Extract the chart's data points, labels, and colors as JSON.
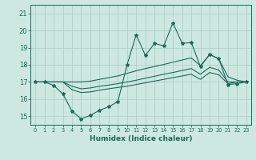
{
  "xlabel": "Humidex (Indice chaleur)",
  "background_color": "#cce8e0",
  "grid_color": "#aaccc4",
  "line_color": "#1a6b5a",
  "xlim": [
    -0.5,
    23.5
  ],
  "ylim": [
    14.5,
    21.5
  ],
  "yticks": [
    15,
    16,
    17,
    18,
    19,
    20,
    21
  ],
  "xticks": [
    0,
    1,
    2,
    3,
    4,
    5,
    6,
    7,
    8,
    9,
    10,
    11,
    12,
    13,
    14,
    15,
    16,
    17,
    18,
    19,
    20,
    21,
    22,
    23
  ],
  "series": {
    "spiky": {
      "x": [
        0,
        1,
        2,
        3,
        4,
        5,
        6,
        7,
        8,
        9,
        10,
        11,
        12,
        13,
        14,
        15,
        16,
        17,
        18,
        19,
        20,
        21,
        22,
        23
      ],
      "y": [
        17.0,
        17.0,
        16.8,
        16.3,
        15.3,
        14.85,
        15.05,
        15.35,
        15.55,
        15.85,
        18.0,
        19.75,
        18.55,
        19.25,
        19.1,
        20.45,
        19.25,
        19.3,
        17.9,
        18.6,
        18.35,
        16.85,
        16.9,
        17.0
      ]
    },
    "upper": {
      "x": [
        0,
        1,
        2,
        3,
        4,
        5,
        6,
        7,
        8,
        9,
        10,
        11,
        12,
        13,
        14,
        15,
        16,
        17,
        18,
        19,
        20,
        21,
        22,
        23
      ],
      "y": [
        17.0,
        17.0,
        17.0,
        17.0,
        17.0,
        17.0,
        17.05,
        17.15,
        17.25,
        17.35,
        17.5,
        17.65,
        17.78,
        17.9,
        18.02,
        18.15,
        18.28,
        18.4,
        17.95,
        18.6,
        18.35,
        17.3,
        17.1,
        17.0
      ]
    },
    "middle": {
      "x": [
        0,
        1,
        2,
        3,
        4,
        5,
        6,
        7,
        8,
        9,
        10,
        11,
        12,
        13,
        14,
        15,
        16,
        17,
        18,
        19,
        20,
        21,
        22,
        23
      ],
      "y": [
        17.0,
        17.0,
        17.0,
        17.0,
        16.75,
        16.6,
        16.65,
        16.75,
        16.82,
        16.9,
        17.0,
        17.1,
        17.22,
        17.33,
        17.45,
        17.55,
        17.67,
        17.78,
        17.45,
        17.85,
        17.7,
        17.0,
        17.0,
        17.0
      ]
    },
    "lower": {
      "x": [
        0,
        1,
        2,
        3,
        4,
        5,
        6,
        7,
        8,
        9,
        10,
        11,
        12,
        13,
        14,
        15,
        16,
        17,
        18,
        19,
        20,
        21,
        22,
        23
      ],
      "y": [
        17.0,
        17.0,
        17.0,
        17.0,
        16.55,
        16.38,
        16.42,
        16.52,
        16.6,
        16.68,
        16.75,
        16.85,
        16.95,
        17.05,
        17.15,
        17.25,
        17.35,
        17.45,
        17.15,
        17.55,
        17.42,
        16.9,
        17.0,
        17.0
      ]
    }
  }
}
